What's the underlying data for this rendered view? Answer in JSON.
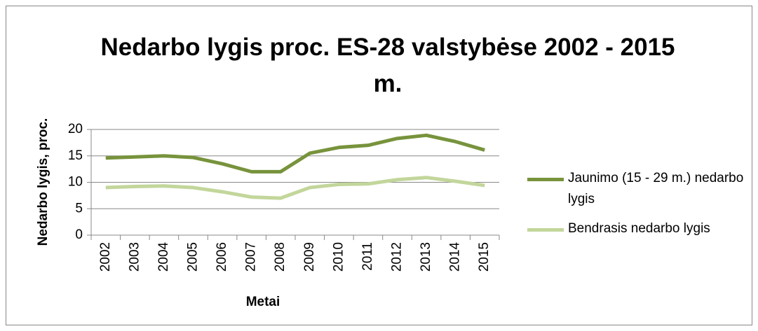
{
  "chart_data": {
    "type": "line",
    "title": "Nedarbo lygis proc. ES-28 valstybėse 2002 - 2015 m.",
    "x_label": "Metai",
    "y_label": "Nedarbo lygis, proc.",
    "categories": [
      "2002",
      "2003",
      "2004",
      "2005",
      "2006",
      "2007",
      "2008",
      "2009",
      "2010",
      "2011",
      "2012",
      "2013",
      "2014",
      "2015"
    ],
    "series": [
      {
        "name": "Jaunimo (15 - 29 m.) nedarbo lygis",
        "color": "#77933c",
        "values": [
          14.6,
          14.8,
          15.0,
          14.7,
          13.5,
          12.0,
          12.0,
          15.5,
          16.6,
          17.0,
          18.3,
          18.9,
          17.7,
          16.1
        ]
      },
      {
        "name": "Bendrasis nedarbo lygis",
        "color": "#c3d69b",
        "values": [
          9.0,
          9.2,
          9.3,
          9.0,
          8.2,
          7.2,
          7.0,
          9.0,
          9.6,
          9.7,
          10.5,
          10.9,
          10.2,
          9.4
        ]
      }
    ],
    "ylim": [
      0,
      20
    ],
    "yticks": [
      0,
      5,
      10,
      15,
      20
    ],
    "grid": true,
    "legend": "right"
  }
}
